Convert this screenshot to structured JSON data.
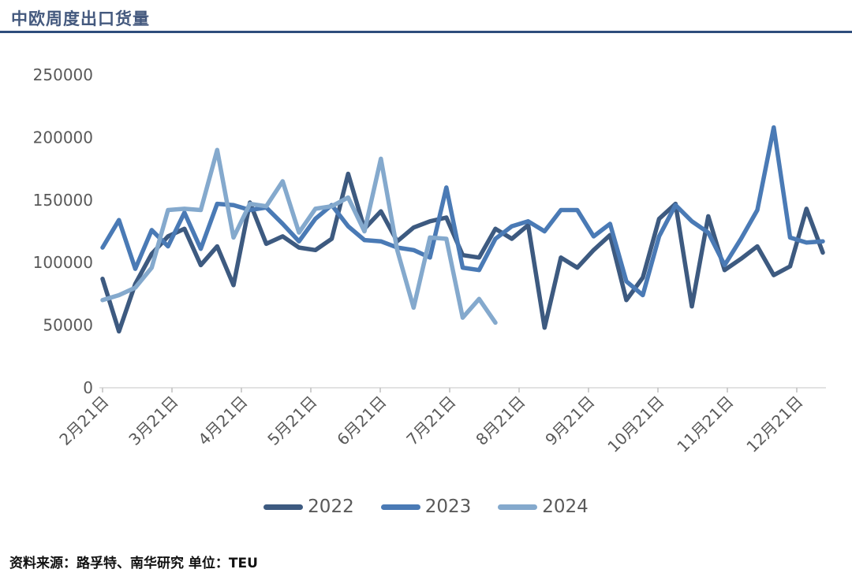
{
  "page": {
    "source_note": "资料来源：路孚特、南华研究 单位：TEU"
  },
  "chart_data": {
    "type": "line",
    "title": "中欧周度出口货量",
    "unit": "TEU",
    "xlabel": "",
    "ylabel": "",
    "ylim": [
      0,
      250000
    ],
    "y_ticks": [
      0,
      50000,
      100000,
      150000,
      200000,
      250000
    ],
    "x_tick_labels": [
      "2月21日",
      "3月21日",
      "4月21日",
      "5月21日",
      "6月21日",
      "7月21日",
      "8月21日",
      "9月21日",
      "10月21日",
      "11月21日",
      "12月21日"
    ],
    "grid": "off",
    "legend_position": "bottom",
    "axis_color": "#595959",
    "baseline_color": "#d9d9d9",
    "series": [
      {
        "name": "2022",
        "color": "#3d5a80",
        "values": [
          87000,
          45000,
          83000,
          107000,
          121000,
          127000,
          98000,
          113000,
          82000,
          148000,
          115000,
          121000,
          112000,
          110000,
          119000,
          171000,
          127000,
          141000,
          117000,
          128000,
          133000,
          136000,
          106000,
          104000,
          127000,
          119000,
          130000,
          48000,
          104000,
          96000,
          110000,
          122000,
          70000,
          88000,
          135000,
          147000,
          65000,
          137000,
          94000,
          103000,
          113000,
          90000,
          97000,
          143000,
          108000
        ]
      },
      {
        "name": "2023",
        "color": "#4a7ab5",
        "values": [
          112000,
          134000,
          95000,
          126000,
          113000,
          140000,
          111000,
          147000,
          146000,
          142000,
          144000,
          131000,
          117000,
          135000,
          146000,
          129000,
          118000,
          117000,
          112000,
          110000,
          104000,
          160000,
          96000,
          94000,
          119000,
          129000,
          133000,
          125000,
          142000,
          142000,
          121000,
          131000,
          85000,
          74000,
          121000,
          146000,
          133000,
          124000,
          98000,
          119000,
          142000,
          208000,
          120000,
          116000,
          117000
        ]
      },
      {
        "name": "2024",
        "color": "#84a9cd",
        "values": [
          70000,
          74000,
          80000,
          96000,
          142000,
          143000,
          142000,
          190000,
          120000,
          147000,
          145000,
          165000,
          124000,
          143000,
          145000,
          152000,
          125000,
          183000,
          110000,
          64000,
          120000,
          119000,
          56000,
          71000,
          52000
        ]
      }
    ]
  }
}
